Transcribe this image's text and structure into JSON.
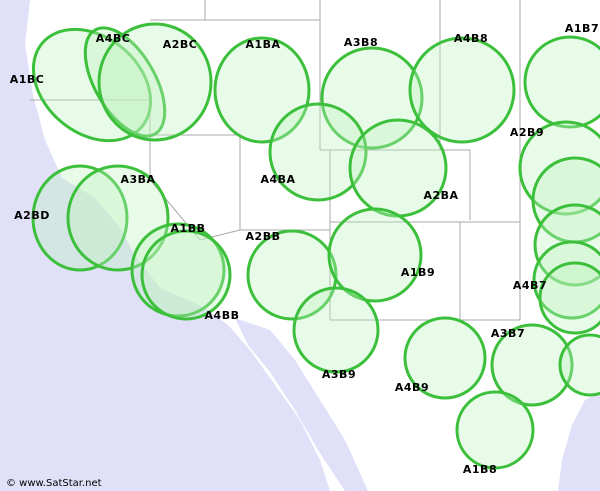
{
  "labels": [
    "A1BC",
    "A4BC",
    "A2BC",
    "A1BA",
    "A3B8",
    "A4B8",
    "A1B7",
    "A2B9",
    "A3BA",
    "A4BA",
    "A2BA",
    "A2BD",
    "A1BB",
    "A2BB",
    "A1B9",
    "A4B7",
    "A4BB",
    "A3B7",
    "A3B9",
    "A4B9",
    "A1B8"
  ],
  "credit": "© www.SatStar.net"
}
